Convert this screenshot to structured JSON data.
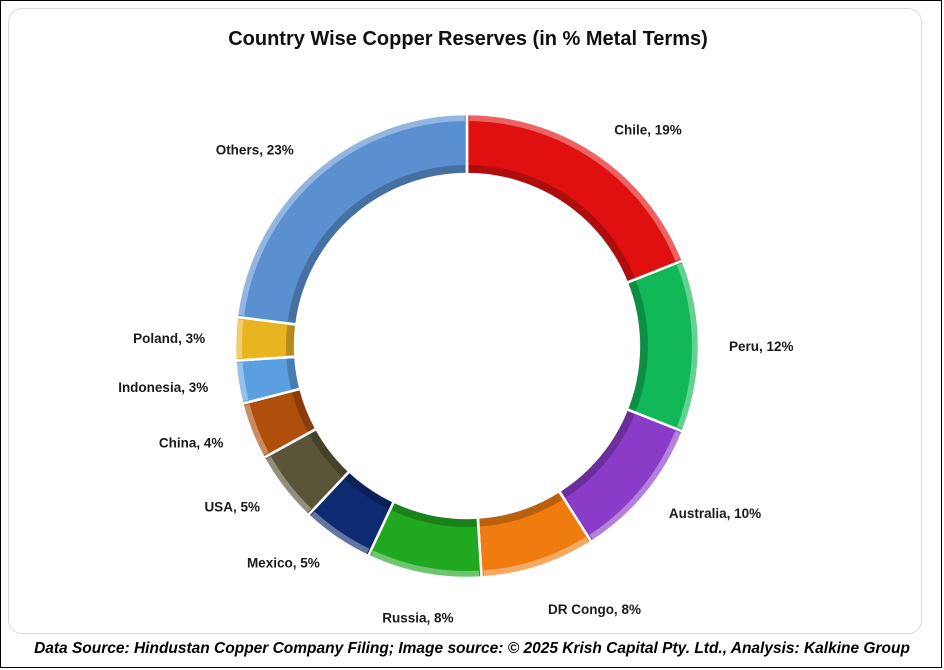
{
  "title": "Country Wise Copper Reserves (in %  Metal Terms)",
  "source": "Data Source: Hindustan Copper Company Filing; Image source: © 2025 Krish Capital Pty. Ltd., Analysis: Kalkine Group",
  "chart_data": {
    "type": "pie",
    "style": "doughnut",
    "title": "Country Wise Copper Reserves (in %  Metal Terms)",
    "slices": [
      {
        "name": "Chile",
        "value": 19,
        "label": "Chile, 19%",
        "color": "#e01010"
      },
      {
        "name": "Peru",
        "value": 12,
        "label": "Peru, 12%",
        "color": "#10b858"
      },
      {
        "name": "Australia",
        "value": 10,
        "label": "Australia, 10%",
        "color": "#8a3cc8"
      },
      {
        "name": "DR Congo",
        "value": 8,
        "label": "DR Congo, 8%",
        "color": "#f07c10"
      },
      {
        "name": "Russia",
        "value": 8,
        "label": "Russia, 8%",
        "color": "#20a820"
      },
      {
        "name": "Mexico",
        "value": 5,
        "label": "Mexico, 5%",
        "color": "#0e2a70"
      },
      {
        "name": "USA",
        "value": 5,
        "label": "USA, 5%",
        "color": "#5a5438"
      },
      {
        "name": "China",
        "value": 4,
        "label": "China, 4%",
        "color": "#b04e0c"
      },
      {
        "name": "Indonesia",
        "value": 3,
        "label": "Indonesia, 3%",
        "color": "#5aa0e0"
      },
      {
        "name": "Poland",
        "value": 3,
        "label": "Poland, 3%",
        "color": "#e8b420"
      },
      {
        "name": "Others",
        "value": 23,
        "label": "Others, 23%",
        "color": "#5a90d0"
      }
    ]
  }
}
